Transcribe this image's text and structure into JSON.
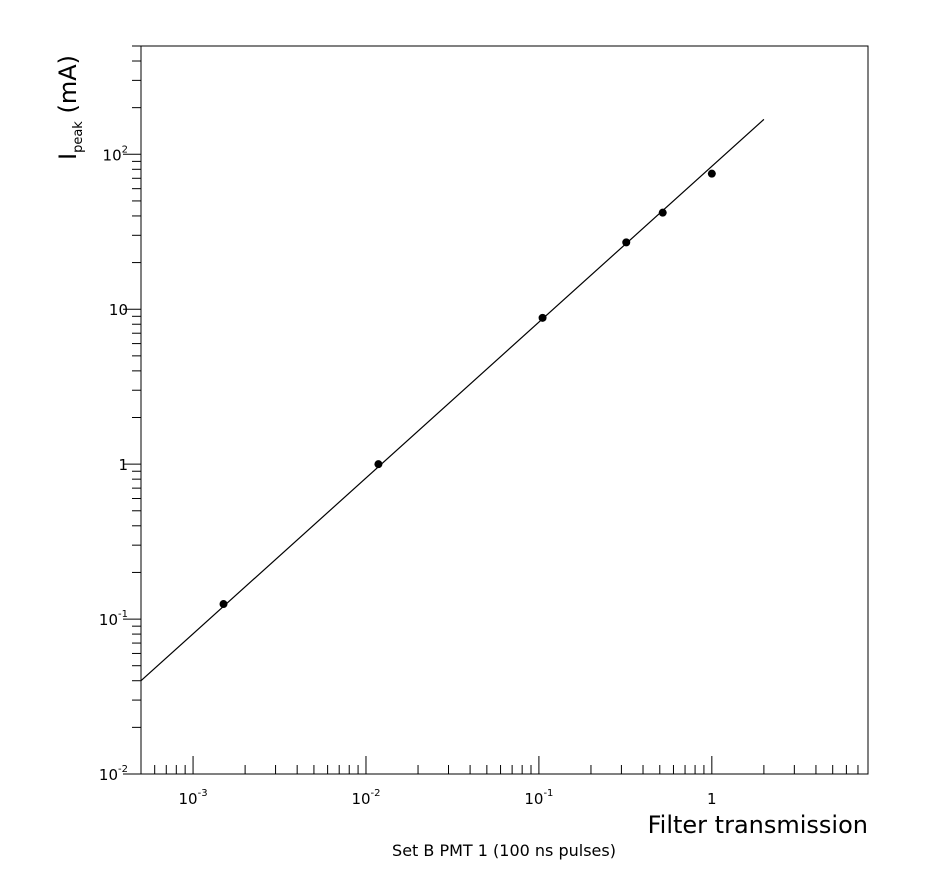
{
  "chart_data": {
    "type": "scatter",
    "title": "",
    "xlabel": "Filter transmission",
    "ylabel_main": "I",
    "ylabel_sub": "peak",
    "ylabel_unit": "(mA)",
    "caption": "Set B PMT 1 (100 ns pulses)",
    "xscale": "log",
    "yscale": "log",
    "xlim": [
      0.0005,
      8
    ],
    "ylim": [
      0.01,
      500
    ],
    "grid": false,
    "x_ticks": [
      {
        "value": 0.001,
        "base": "10",
        "exp": "-3",
        "text": ""
      },
      {
        "value": 0.01,
        "base": "10",
        "exp": "-2",
        "text": ""
      },
      {
        "value": 0.1,
        "base": "10",
        "exp": "-1",
        "text": ""
      },
      {
        "value": 1,
        "base": "",
        "exp": "",
        "text": "1"
      }
    ],
    "y_ticks": [
      {
        "value": 0.01,
        "base": "10",
        "exp": "-2",
        "text": ""
      },
      {
        "value": 0.1,
        "base": "10",
        "exp": "-1",
        "text": ""
      },
      {
        "value": 1,
        "base": "",
        "exp": "",
        "text": "1"
      },
      {
        "value": 10,
        "base": "",
        "exp": "",
        "text": "10"
      },
      {
        "value": 100,
        "base": "10",
        "exp": "2",
        "text": ""
      }
    ],
    "points": [
      {
        "x": 0.0015,
        "y": 0.125
      },
      {
        "x": 0.0118,
        "y": 1.0
      },
      {
        "x": 0.105,
        "y": 8.8
      },
      {
        "x": 0.32,
        "y": 27
      },
      {
        "x": 0.52,
        "y": 42
      },
      {
        "x": 1.0,
        "y": 75
      }
    ],
    "fit_line": {
      "x": [
        0.0005,
        2.0
      ],
      "y": [
        0.04,
        168
      ]
    }
  }
}
